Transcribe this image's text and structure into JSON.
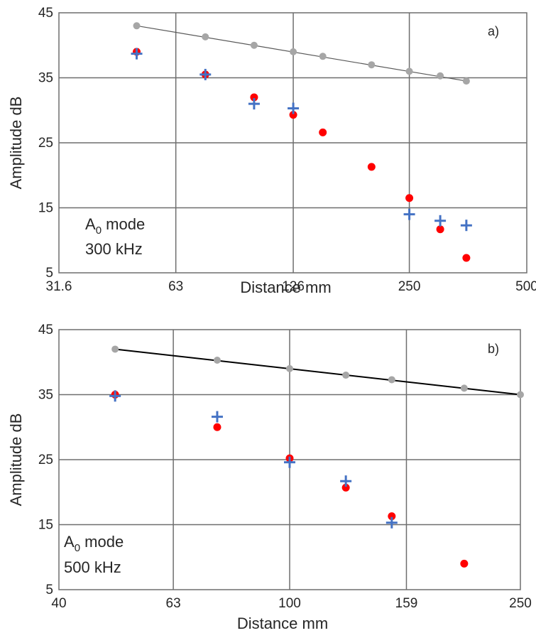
{
  "chart_data": [
    {
      "type": "scatter",
      "panel_label": "a)",
      "annotation": {
        "mode": "A",
        "subscript": "0",
        "mode_suffix": " mode",
        "frequency": "300 kHz"
      },
      "xlabel": "Distance  mm",
      "ylabel": "Amplitude  dB",
      "x_scale": "log",
      "xlim": [
        31.6,
        500
      ],
      "x_ticks": [
        31.6,
        63,
        126,
        250,
        500
      ],
      "x_tick_labels": [
        "31.6",
        "63",
        "126",
        "250",
        "500"
      ],
      "ylim": [
        5,
        45
      ],
      "y_ticks": [
        5,
        15,
        25,
        35,
        45
      ],
      "y_tick_labels": [
        "5",
        "15",
        "25",
        "35",
        "45"
      ],
      "grid": true,
      "series": [
        {
          "marker": "circle",
          "color": "#a6a6a6",
          "line": true,
          "x": [
            50,
            75,
            100,
            126,
            150,
            200,
            250,
            300,
            350
          ],
          "y": [
            43.0,
            41.3,
            40.0,
            39.0,
            38.3,
            37.0,
            36.0,
            35.3,
            34.5
          ]
        },
        {
          "marker": "circle",
          "color": "#ff0000",
          "x": [
            50,
            75,
            100,
            126,
            150,
            200,
            250,
            300,
            350
          ],
          "y": [
            39.0,
            35.5,
            32.0,
            29.3,
            26.6,
            21.3,
            16.5,
            11.7,
            7.3
          ]
        },
        {
          "marker": "plus",
          "color": "#4472c4",
          "x": [
            50,
            75,
            100,
            126,
            250,
            300,
            350
          ],
          "y": [
            38.7,
            35.5,
            31.0,
            30.3,
            14.0,
            13.0,
            12.3
          ]
        }
      ]
    },
    {
      "type": "scatter",
      "panel_label": "b)",
      "annotation": {
        "mode": "A",
        "subscript": "0",
        "mode_suffix": " mode",
        "frequency": "500 kHz"
      },
      "xlabel": "Distance  mm",
      "ylabel": "Amplitude  dB",
      "x_scale": "log",
      "xlim": [
        40,
        250
      ],
      "x_ticks": [
        40,
        63,
        100,
        159,
        250
      ],
      "x_tick_labels": [
        "40",
        "63",
        "100",
        "159",
        "250"
      ],
      "ylim": [
        5,
        45
      ],
      "y_ticks": [
        5,
        15,
        25,
        35,
        45
      ],
      "y_tick_labels": [
        "5",
        "15",
        "25",
        "35",
        "45"
      ],
      "grid": true,
      "series": [
        {
          "marker": "circle",
          "color": "#a6a6a6",
          "line": true,
          "line_color": "#000000",
          "x": [
            50,
            75,
            100,
            125,
            150,
            200,
            250
          ],
          "y": [
            42.0,
            40.3,
            39.0,
            38.0,
            37.3,
            36.0,
            35.0
          ]
        },
        {
          "marker": "circle",
          "color": "#ff0000",
          "x": [
            50,
            75,
            100,
            125,
            150,
            200
          ],
          "y": [
            35.0,
            30.0,
            25.2,
            20.7,
            16.3,
            9.0
          ]
        },
        {
          "marker": "plus",
          "color": "#4472c4",
          "x": [
            50,
            75,
            100,
            125,
            150
          ],
          "y": [
            34.8,
            31.6,
            24.6,
            21.7,
            15.3
          ]
        }
      ]
    }
  ]
}
